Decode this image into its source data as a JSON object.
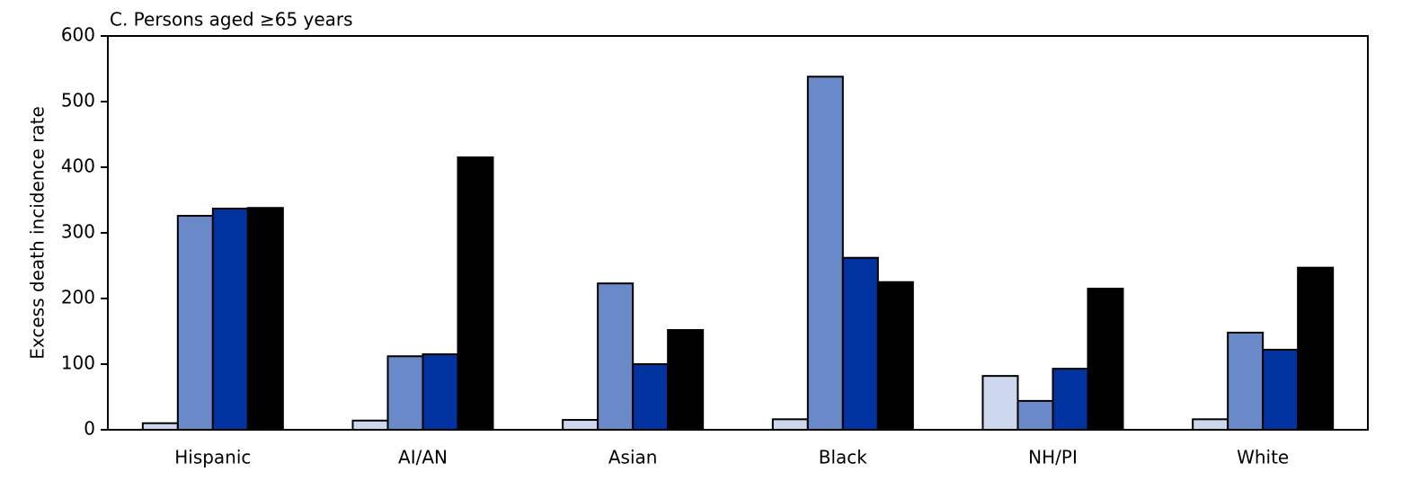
{
  "chart_data": {
    "type": "bar",
    "title": "C. Persons aged ≥65 years",
    "y_label": "Excess death incidence rate",
    "categories": [
      "Hispanic",
      "AI/AN",
      "Asian",
      "Black",
      "NH/PI",
      "White"
    ],
    "series": [
      {
        "color": "#cdd7ee",
        "values": [
          10,
          14,
          15,
          16,
          82,
          16
        ]
      },
      {
        "color": "#6a89c9",
        "values": [
          326,
          112,
          223,
          538,
          44,
          148
        ]
      },
      {
        "color": "#0033a0",
        "values": [
          337,
          115,
          100,
          262,
          93,
          122
        ]
      },
      {
        "color": "#000000",
        "values": [
          338,
          415,
          152,
          225,
          215,
          247
        ]
      }
    ],
    "ylim": [
      0,
      600
    ],
    "yticks": [
      0,
      100,
      200,
      300,
      400,
      500,
      600
    ],
    "grid": false
  }
}
